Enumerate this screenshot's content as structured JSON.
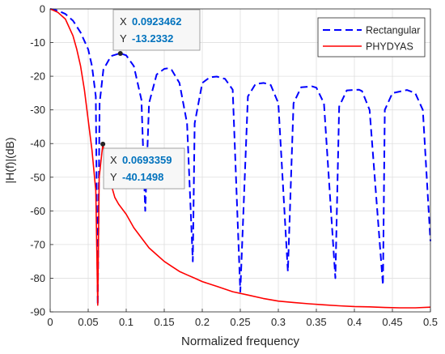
{
  "chart_data": {
    "type": "line",
    "title": "",
    "xlabel": "Normalized frequency",
    "ylabel": "|H(f)|(dB)",
    "xlim": [
      0,
      0.5
    ],
    "ylim": [
      -90,
      0
    ],
    "xticks": [
      0,
      0.05,
      0.1,
      0.15,
      0.2,
      0.25,
      0.3,
      0.35,
      0.4,
      0.45,
      0.5
    ],
    "xtick_labels": [
      "0",
      "0.05",
      "0.1",
      "0.15",
      "0.2",
      "0.25",
      "0.3",
      "0.35",
      "0.4",
      "0.45",
      "0.5"
    ],
    "yticks": [
      0,
      -10,
      -20,
      -30,
      -40,
      -50,
      -60,
      -70,
      -80,
      -90
    ],
    "ytick_labels": [
      "0",
      "-10",
      "-20",
      "-30",
      "-40",
      "-50",
      "-60",
      "-70",
      "-80",
      "-90"
    ],
    "grid": true,
    "legend_position": "top-right",
    "series": [
      {
        "name": "Rectangular",
        "color": "#0000ff",
        "style": "dashed",
        "x": [
          0,
          0.01,
          0.02,
          0.03,
          0.04,
          0.05,
          0.055,
          0.06,
          0.0625,
          0.065,
          0.07,
          0.08,
          0.09,
          0.0923,
          0.1,
          0.11,
          0.12,
          0.125,
          0.13,
          0.14,
          0.15,
          0.156,
          0.16,
          0.17,
          0.18,
          0.1875,
          0.19,
          0.2,
          0.21,
          0.219,
          0.23,
          0.24,
          0.25,
          0.26,
          0.27,
          0.281,
          0.29,
          0.3,
          0.3125,
          0.32,
          0.33,
          0.344,
          0.35,
          0.36,
          0.375,
          0.38,
          0.39,
          0.406,
          0.41,
          0.42,
          0.4375,
          0.44,
          0.45,
          0.469,
          0.48,
          0.49,
          0.5
        ],
        "y": [
          0,
          -0.5,
          -1.5,
          -3.5,
          -7,
          -12,
          -17,
          -26,
          -88,
          -28,
          -18,
          -14,
          -13.3,
          -13.2,
          -13.8,
          -17,
          -27,
          -60,
          -28,
          -19.5,
          -17.8,
          -17.6,
          -18.2,
          -22,
          -34,
          -75,
          -34,
          -22,
          -20.3,
          -20.1,
          -20.8,
          -24,
          -84,
          -26,
          -22.3,
          -22,
          -22.6,
          -28,
          -78,
          -28,
          -23.3,
          -23,
          -23.4,
          -28,
          -80,
          -29,
          -24.2,
          -24,
          -24.4,
          -30,
          -82,
          -30,
          -25,
          -24.1,
          -25,
          -30,
          -69
        ]
      },
      {
        "name": "PHYDYAS",
        "color": "#ff0000",
        "style": "solid",
        "x": [
          0,
          0.01,
          0.02,
          0.03,
          0.035,
          0.04,
          0.045,
          0.05,
          0.055,
          0.06,
          0.0625,
          0.0645,
          0.0693,
          0.075,
          0.08,
          0.085,
          0.09,
          0.1,
          0.11,
          0.12,
          0.13,
          0.14,
          0.15,
          0.16,
          0.17,
          0.18,
          0.19,
          0.2,
          0.22,
          0.24,
          0.26,
          0.28,
          0.3,
          0.32,
          0.34,
          0.36,
          0.38,
          0.4,
          0.42,
          0.44,
          0.46,
          0.48,
          0.5
        ],
        "y": [
          0,
          -1,
          -3,
          -8,
          -12,
          -17,
          -24,
          -33,
          -42,
          -54,
          -88,
          -50,
          -40.15,
          -48,
          -52,
          -56,
          -58,
          -61,
          -65,
          -68,
          -71,
          -73,
          -75,
          -76.5,
          -78,
          -79,
          -80,
          -81,
          -82.5,
          -84,
          -85,
          -86,
          -86.8,
          -87.2,
          -87.6,
          -87.9,
          -88.2,
          -88.4,
          -88.5,
          -88.7,
          -88.8,
          -88.8,
          -88.6
        ]
      }
    ],
    "datatips": [
      {
        "series": "Rectangular",
        "x": 0.0923,
        "y": -13.23,
        "x_label": "X",
        "x_value": "0.0923462",
        "y_label": "Y",
        "y_value": "-13.2332"
      },
      {
        "series": "PHYDYAS",
        "x": 0.0693,
        "y": -40.15,
        "x_label": "X",
        "x_value": "0.0693359",
        "y_label": "Y",
        "y_value": "-40.1498"
      }
    ]
  }
}
